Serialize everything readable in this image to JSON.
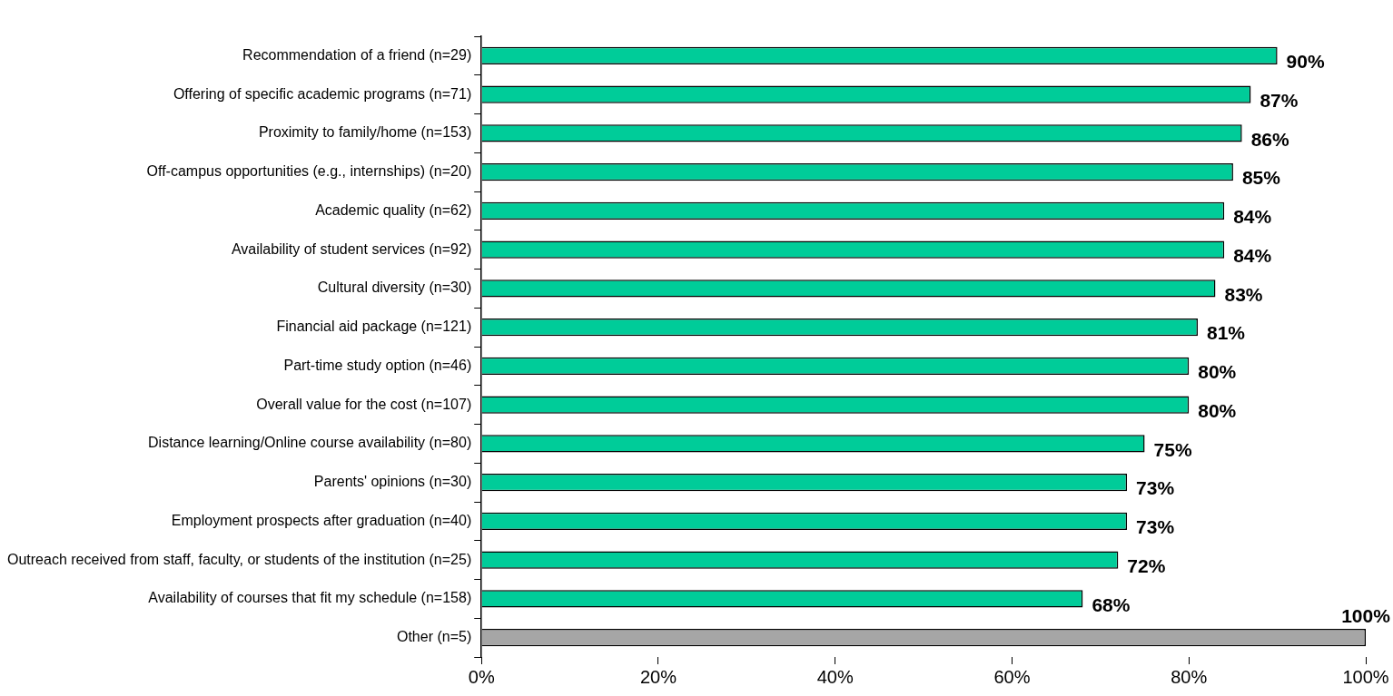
{
  "chart_data": {
    "type": "bar",
    "orientation": "horizontal",
    "categories": [
      "Recommendation of a friend (n=29)",
      "Offering of specific academic programs (n=71)",
      "Proximity to family/home (n=153)",
      "Off-campus opportunities (e.g., internships) (n=20)",
      "Academic quality (n=62)",
      "Availability of student services (n=92)",
      "Cultural diversity (n=30)",
      "Financial aid package (n=121)",
      "Part-time study option (n=46)",
      "Overall value for the cost (n=107)",
      "Distance learning/Online course availability (n=80)",
      "Parents' opinions (n=30)",
      "Employment prospects after graduation (n=40)",
      "Outreach received from staff, faculty, or students of the institution (n=25)",
      "Availability of courses that fit my schedule (n=158)",
      "Other (n=5)"
    ],
    "values": [
      90,
      87,
      86,
      85,
      84,
      84,
      83,
      81,
      80,
      80,
      75,
      73,
      73,
      72,
      68,
      100
    ],
    "value_labels": [
      "90%",
      "87%",
      "86%",
      "85%",
      "84%",
      "84%",
      "83%",
      "81%",
      "80%",
      "80%",
      "75%",
      "73%",
      "73%",
      "72%",
      "68%",
      "100%"
    ],
    "colors": [
      "#00cc99",
      "#00cc99",
      "#00cc99",
      "#00cc99",
      "#00cc99",
      "#00cc99",
      "#00cc99",
      "#00cc99",
      "#00cc99",
      "#00cc99",
      "#00cc99",
      "#00cc99",
      "#00cc99",
      "#00cc99",
      "#00cc99",
      "#a6a6a6"
    ],
    "xlim": [
      0,
      100
    ],
    "xticks": [
      {
        "value": 0,
        "label": "0%"
      },
      {
        "value": 20,
        "label": "20%"
      },
      {
        "value": 40,
        "label": "40%"
      },
      {
        "value": 60,
        "label": "60%"
      },
      {
        "value": 80,
        "label": "80%"
      },
      {
        "value": 100,
        "label": "100%"
      }
    ],
    "grid": false,
    "legend": false
  }
}
